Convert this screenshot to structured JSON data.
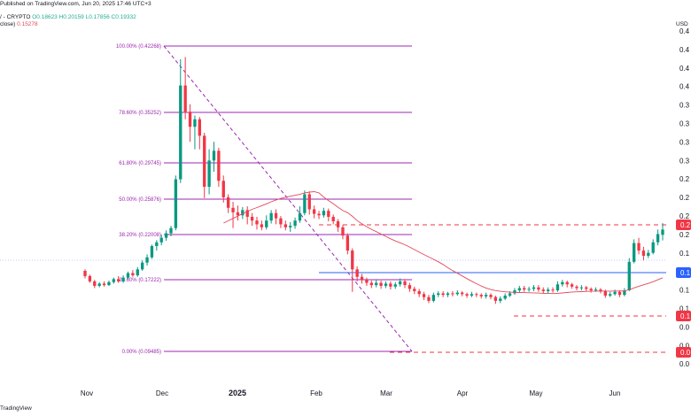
{
  "header": {
    "published": "Published on TradingView.com, Jun 20, 2025 17:46 UTC+3",
    "symbol": "/ - CRYPTO",
    "ohlc": "O0.18623  H0.20159  L0.17856  C0.19332",
    "ma_label": "close)",
    "ma_value": "0.15278",
    "currency": "USD",
    "brand": "TradingView"
  },
  "colors": {
    "up": "#089981",
    "down": "#f23645",
    "fib": "#9c27b0",
    "ma": "#e2485c",
    "level_blue": "#2962ff",
    "level_red": "#f23645"
  },
  "chart_data": {
    "type": "candlestick",
    "x_ticks": [
      "Nov",
      "Dec",
      "2025",
      "Feb",
      "Mar",
      "Apr",
      "May",
      "Jun"
    ],
    "y_ticks": [
      "0.4",
      "0.4",
      "0.4",
      "0.4",
      "0.3",
      "0.3",
      "0.3",
      "0.3",
      "0.2",
      "0.2",
      "0.2",
      "0.2",
      "0.1",
      "0.1",
      "0.1",
      "0.1",
      "0.0",
      "0.0",
      "0.0"
    ],
    "ylim": [
      0.0,
      0.46
    ],
    "fib_levels": [
      {
        "label": "100.00% (0.42268)",
        "value": 0.42268
      },
      {
        "label": "78.60% (0.35252)",
        "value": 0.35252
      },
      {
        "label": "61.80% (0.29745)",
        "value": 0.29745
      },
      {
        "label": "50.00% (0.25876)",
        "value": 0.25876
      },
      {
        "label": "38.20% (0.22008)",
        "value": 0.22008
      },
      {
        "label": "23.60% (0.17222)",
        "value": 0.17222
      },
      {
        "label": "0.00% (0.09485)",
        "value": 0.09485
      }
    ],
    "horizontal_levels": [
      {
        "value": 0.25876,
        "style": "dashed",
        "color": "red",
        "badge": "0.2"
      },
      {
        "value": 0.1806,
        "style": "solid",
        "color": "blue",
        "badge": "0.1"
      },
      {
        "value": 0.1245,
        "style": "dashed",
        "color": "red",
        "badge": "0.1"
      },
      {
        "value": 0.0945,
        "style": "dashed",
        "color": "red",
        "badge": "0.0"
      }
    ],
    "last_price": 0.19332,
    "moving_average_last": 0.15278,
    "candles": [
      [
        0.138,
        0.131,
        0.14,
        0.128
      ],
      [
        0.131,
        0.124,
        0.133,
        0.122
      ],
      [
        0.124,
        0.118,
        0.126,
        0.115
      ],
      [
        0.118,
        0.121,
        0.123,
        0.116
      ],
      [
        0.121,
        0.119,
        0.124,
        0.117
      ],
      [
        0.119,
        0.123,
        0.125,
        0.118
      ],
      [
        0.123,
        0.127,
        0.129,
        0.121
      ],
      [
        0.127,
        0.124,
        0.131,
        0.122
      ],
      [
        0.124,
        0.129,
        0.132,
        0.122
      ],
      [
        0.129,
        0.135,
        0.137,
        0.127
      ],
      [
        0.135,
        0.132,
        0.139,
        0.13
      ],
      [
        0.132,
        0.14,
        0.143,
        0.13
      ],
      [
        0.14,
        0.149,
        0.152,
        0.138
      ],
      [
        0.149,
        0.156,
        0.16,
        0.145
      ],
      [
        0.156,
        0.171,
        0.173,
        0.154
      ],
      [
        0.171,
        0.176,
        0.179,
        0.165
      ],
      [
        0.176,
        0.182,
        0.186,
        0.172
      ],
      [
        0.182,
        0.188,
        0.192,
        0.178
      ],
      [
        0.188,
        0.195,
        0.198,
        0.184
      ],
      [
        0.195,
        0.26,
        0.265,
        0.192
      ],
      [
        0.26,
        0.385,
        0.42,
        0.255
      ],
      [
        0.385,
        0.35,
        0.423,
        0.34
      ],
      [
        0.35,
        0.33,
        0.36,
        0.31
      ],
      [
        0.33,
        0.34,
        0.345,
        0.3
      ],
      [
        0.34,
        0.318,
        0.343,
        0.3
      ],
      [
        0.318,
        0.25,
        0.322,
        0.235
      ],
      [
        0.25,
        0.285,
        0.3,
        0.24
      ],
      [
        0.285,
        0.298,
        0.31,
        0.27
      ],
      [
        0.298,
        0.258,
        0.302,
        0.25
      ],
      [
        0.258,
        0.236,
        0.265,
        0.229
      ],
      [
        0.236,
        0.222,
        0.24,
        0.215
      ],
      [
        0.222,
        0.216,
        0.23,
        0.195
      ],
      [
        0.216,
        0.212,
        0.225,
        0.205
      ],
      [
        0.212,
        0.219,
        0.223,
        0.207
      ],
      [
        0.219,
        0.21,
        0.224,
        0.2
      ],
      [
        0.21,
        0.205,
        0.215,
        0.198
      ],
      [
        0.205,
        0.2,
        0.21,
        0.193
      ],
      [
        0.2,
        0.196,
        0.205,
        0.192
      ],
      [
        0.196,
        0.205,
        0.212,
        0.193
      ],
      [
        0.205,
        0.215,
        0.219,
        0.201
      ],
      [
        0.215,
        0.208,
        0.22,
        0.2
      ],
      [
        0.208,
        0.2,
        0.211,
        0.195
      ],
      [
        0.2,
        0.196,
        0.205,
        0.192
      ],
      [
        0.196,
        0.198,
        0.203,
        0.19
      ],
      [
        0.198,
        0.205,
        0.209,
        0.194
      ],
      [
        0.205,
        0.215,
        0.224,
        0.202
      ],
      [
        0.215,
        0.24,
        0.245,
        0.212
      ],
      [
        0.24,
        0.22,
        0.244,
        0.213
      ],
      [
        0.22,
        0.214,
        0.225,
        0.208
      ],
      [
        0.214,
        0.212,
        0.218,
        0.207
      ],
      [
        0.212,
        0.218,
        0.222,
        0.209
      ],
      [
        0.218,
        0.21,
        0.221,
        0.204
      ],
      [
        0.21,
        0.204,
        0.213,
        0.2
      ],
      [
        0.204,
        0.196,
        0.207,
        0.19
      ],
      [
        0.196,
        0.185,
        0.199,
        0.18
      ],
      [
        0.185,
        0.165,
        0.188,
        0.16
      ],
      [
        0.165,
        0.14,
        0.168,
        0.11
      ],
      [
        0.14,
        0.13,
        0.144,
        0.124
      ],
      [
        0.13,
        0.126,
        0.134,
        0.121
      ],
      [
        0.126,
        0.122,
        0.129,
        0.118
      ],
      [
        0.122,
        0.119,
        0.125,
        0.115
      ],
      [
        0.119,
        0.122,
        0.126,
        0.116
      ],
      [
        0.122,
        0.118,
        0.125,
        0.114
      ],
      [
        0.118,
        0.121,
        0.124,
        0.115
      ],
      [
        0.121,
        0.117,
        0.124,
        0.113
      ],
      [
        0.117,
        0.12,
        0.123,
        0.114
      ],
      [
        0.12,
        0.124,
        0.128,
        0.117
      ],
      [
        0.124,
        0.119,
        0.127,
        0.115
      ],
      [
        0.119,
        0.114,
        0.122,
        0.11
      ],
      [
        0.114,
        0.111,
        0.117,
        0.107
      ],
      [
        0.111,
        0.107,
        0.114,
        0.103
      ],
      [
        0.107,
        0.103,
        0.11,
        0.099
      ],
      [
        0.103,
        0.098,
        0.106,
        0.095
      ],
      [
        0.098,
        0.106,
        0.109,
        0.096
      ],
      [
        0.106,
        0.108,
        0.111,
        0.103
      ],
      [
        0.108,
        0.106,
        0.111,
        0.103
      ],
      [
        0.106,
        0.108,
        0.11,
        0.103
      ],
      [
        0.108,
        0.107,
        0.111,
        0.104
      ],
      [
        0.107,
        0.109,
        0.112,
        0.105
      ],
      [
        0.109,
        0.107,
        0.111,
        0.104
      ],
      [
        0.107,
        0.105,
        0.109,
        0.102
      ],
      [
        0.105,
        0.107,
        0.11,
        0.103
      ],
      [
        0.107,
        0.106,
        0.109,
        0.103
      ],
      [
        0.106,
        0.104,
        0.108,
        0.101
      ],
      [
        0.104,
        0.106,
        0.109,
        0.101
      ],
      [
        0.106,
        0.103,
        0.108,
        0.1
      ],
      [
        0.103,
        0.098,
        0.105,
        0.094
      ],
      [
        0.098,
        0.101,
        0.104,
        0.095
      ],
      [
        0.101,
        0.105,
        0.108,
        0.099
      ],
      [
        0.105,
        0.108,
        0.111,
        0.103
      ],
      [
        0.108,
        0.112,
        0.115,
        0.106
      ],
      [
        0.112,
        0.115,
        0.118,
        0.109
      ],
      [
        0.115,
        0.113,
        0.118,
        0.11
      ],
      [
        0.113,
        0.114,
        0.117,
        0.11
      ],
      [
        0.114,
        0.116,
        0.119,
        0.111
      ],
      [
        0.116,
        0.113,
        0.119,
        0.11
      ],
      [
        0.113,
        0.111,
        0.116,
        0.108
      ],
      [
        0.111,
        0.113,
        0.116,
        0.108
      ],
      [
        0.113,
        0.112,
        0.116,
        0.109
      ],
      [
        0.112,
        0.12,
        0.124,
        0.11
      ],
      [
        0.12,
        0.123,
        0.126,
        0.117
      ],
      [
        0.123,
        0.12,
        0.125,
        0.116
      ],
      [
        0.12,
        0.117,
        0.122,
        0.114
      ],
      [
        0.117,
        0.115,
        0.119,
        0.112
      ],
      [
        0.115,
        0.116,
        0.119,
        0.112
      ],
      [
        0.116,
        0.114,
        0.118,
        0.111
      ],
      [
        0.114,
        0.112,
        0.116,
        0.109
      ],
      [
        0.112,
        0.113,
        0.116,
        0.11
      ],
      [
        0.113,
        0.111,
        0.115,
        0.108
      ],
      [
        0.111,
        0.105,
        0.113,
        0.102
      ],
      [
        0.105,
        0.107,
        0.11,
        0.103
      ],
      [
        0.107,
        0.11,
        0.113,
        0.105
      ],
      [
        0.11,
        0.106,
        0.112,
        0.103
      ],
      [
        0.106,
        0.112,
        0.115,
        0.104
      ],
      [
        0.112,
        0.15,
        0.155,
        0.111
      ],
      [
        0.15,
        0.175,
        0.18,
        0.148
      ],
      [
        0.175,
        0.165,
        0.182,
        0.16
      ],
      [
        0.165,
        0.158,
        0.17,
        0.152
      ],
      [
        0.158,
        0.162,
        0.166,
        0.155
      ],
      [
        0.162,
        0.176,
        0.18,
        0.16
      ],
      [
        0.176,
        0.187,
        0.193,
        0.172
      ],
      [
        0.186,
        0.193,
        0.2016,
        0.1786
      ]
    ]
  }
}
